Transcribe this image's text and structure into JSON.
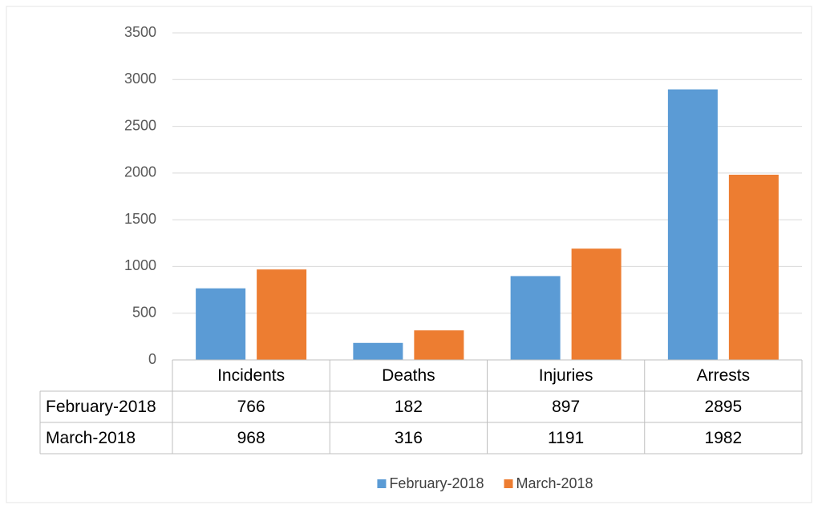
{
  "chart_data": {
    "type": "bar",
    "categories": [
      "Incidents",
      "Deaths",
      "Injuries",
      "Arrests"
    ],
    "series": [
      {
        "name": "February-2018",
        "color": "#5b9bd5",
        "values": [
          766,
          182,
          897,
          2895
        ]
      },
      {
        "name": "March-2018",
        "color": "#ed7d31",
        "values": [
          968,
          316,
          1191,
          1982
        ]
      }
    ],
    "ylim": [
      0,
      3500
    ],
    "yticks": [
      0,
      500,
      1000,
      1500,
      2000,
      2500,
      3000,
      3500
    ],
    "grid": true,
    "legend": "bottom",
    "data_table": true
  }
}
